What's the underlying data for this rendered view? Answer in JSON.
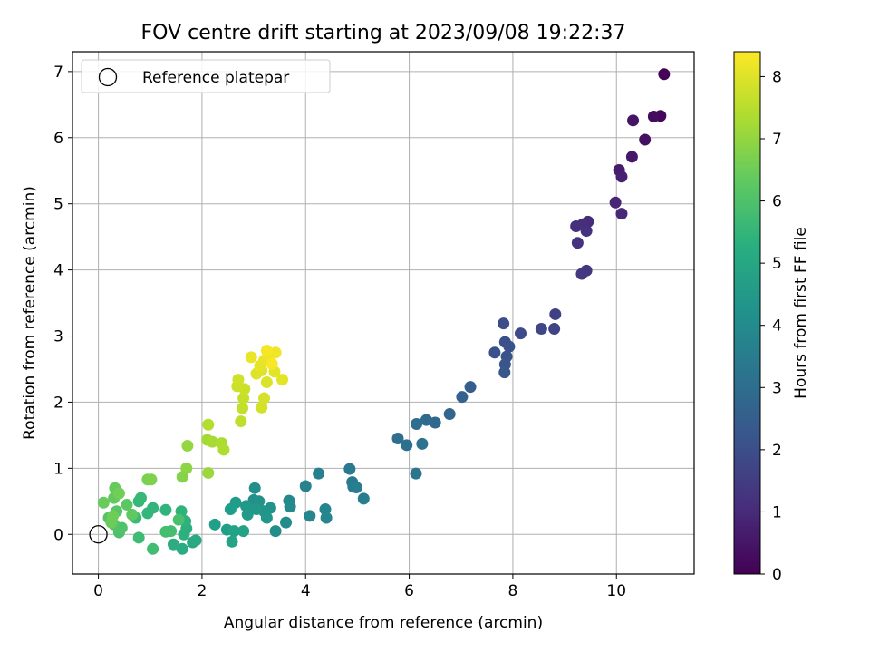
{
  "chart_data": {
    "type": "scatter",
    "title": "FOV centre drift starting at 2023/09/08 19:22:37",
    "xlabel": "Angular distance from reference (arcmin)",
    "ylabel": "Rotation from reference (arcmin)",
    "xlim": [
      -0.5,
      11.5
    ],
    "ylim": [
      -0.6,
      7.3
    ],
    "xticks": [
      "0",
      "2",
      "4",
      "6",
      "8",
      "10"
    ],
    "yticks": [
      "0",
      "1",
      "2",
      "3",
      "4",
      "5",
      "6",
      "7"
    ],
    "grid": true,
    "legend": {
      "position": "top-left",
      "entries": [
        "Reference platepar"
      ]
    },
    "reference_point": {
      "x": 0,
      "y": 0
    },
    "colorbar": {
      "label": "Hours from first FF file",
      "range": [
        0,
        8.4
      ],
      "ticks": [
        "0",
        "1",
        "2",
        "3",
        "4",
        "5",
        "6",
        "7",
        "8"
      ],
      "colormap": "viridis"
    },
    "points": [
      {
        "x": 10.92,
        "y": 6.96,
        "c": 0.05
      },
      {
        "x": 10.85,
        "y": 6.33,
        "c": 0.15
      },
      {
        "x": 10.72,
        "y": 6.32,
        "c": 0.25
      },
      {
        "x": 10.55,
        "y": 5.97,
        "c": 0.35
      },
      {
        "x": 10.32,
        "y": 6.26,
        "c": 0.45
      },
      {
        "x": 10.3,
        "y": 5.71,
        "c": 0.55
      },
      {
        "x": 10.05,
        "y": 5.51,
        "c": 0.65
      },
      {
        "x": 10.1,
        "y": 5.41,
        "c": 0.75
      },
      {
        "x": 9.98,
        "y": 5.02,
        "c": 0.85
      },
      {
        "x": 10.1,
        "y": 4.85,
        "c": 0.95
      },
      {
        "x": 9.45,
        "y": 4.73,
        "c": 1.05
      },
      {
        "x": 9.35,
        "y": 4.69,
        "c": 1.1
      },
      {
        "x": 9.22,
        "y": 4.66,
        "c": 1.15
      },
      {
        "x": 9.42,
        "y": 4.59,
        "c": 1.2
      },
      {
        "x": 9.25,
        "y": 4.41,
        "c": 1.25
      },
      {
        "x": 9.42,
        "y": 3.99,
        "c": 1.35
      },
      {
        "x": 9.33,
        "y": 3.94,
        "c": 1.4
      },
      {
        "x": 8.82,
        "y": 3.33,
        "c": 1.6
      },
      {
        "x": 8.8,
        "y": 3.11,
        "c": 1.7
      },
      {
        "x": 8.55,
        "y": 3.11,
        "c": 1.8
      },
      {
        "x": 8.15,
        "y": 3.04,
        "c": 1.9
      },
      {
        "x": 7.82,
        "y": 3.19,
        "c": 2.0
      },
      {
        "x": 7.85,
        "y": 2.91,
        "c": 2.05
      },
      {
        "x": 7.93,
        "y": 2.84,
        "c": 2.1
      },
      {
        "x": 7.65,
        "y": 2.75,
        "c": 2.15
      },
      {
        "x": 7.88,
        "y": 2.69,
        "c": 2.2
      },
      {
        "x": 7.85,
        "y": 2.57,
        "c": 2.25
      },
      {
        "x": 7.84,
        "y": 2.45,
        "c": 2.3
      },
      {
        "x": 7.18,
        "y": 2.23,
        "c": 2.5
      },
      {
        "x": 7.02,
        "y": 2.08,
        "c": 2.6
      },
      {
        "x": 6.78,
        "y": 1.82,
        "c": 2.75
      },
      {
        "x": 6.5,
        "y": 1.69,
        "c": 2.85
      },
      {
        "x": 6.33,
        "y": 1.73,
        "c": 2.9
      },
      {
        "x": 6.14,
        "y": 1.67,
        "c": 2.95
      },
      {
        "x": 5.78,
        "y": 1.45,
        "c": 3.05
      },
      {
        "x": 5.95,
        "y": 1.35,
        "c": 3.1
      },
      {
        "x": 6.25,
        "y": 1.37,
        "c": 3.15
      },
      {
        "x": 6.13,
        "y": 0.92,
        "c": 3.25
      },
      {
        "x": 4.85,
        "y": 0.99,
        "c": 3.4
      },
      {
        "x": 4.9,
        "y": 0.79,
        "c": 3.45
      },
      {
        "x": 4.92,
        "y": 0.72,
        "c": 3.5
      },
      {
        "x": 4.98,
        "y": 0.71,
        "c": 3.55
      },
      {
        "x": 5.12,
        "y": 0.54,
        "c": 3.6
      },
      {
        "x": 4.25,
        "y": 0.92,
        "c": 3.7
      },
      {
        "x": 4.0,
        "y": 0.73,
        "c": 3.75
      },
      {
        "x": 4.38,
        "y": 0.38,
        "c": 3.8
      },
      {
        "x": 4.4,
        "y": 0.25,
        "c": 3.85
      },
      {
        "x": 4.08,
        "y": 0.28,
        "c": 3.9
      },
      {
        "x": 3.68,
        "y": 0.51,
        "c": 3.95
      },
      {
        "x": 3.7,
        "y": 0.42,
        "c": 4.0
      },
      {
        "x": 3.62,
        "y": 0.18,
        "c": 4.05
      },
      {
        "x": 3.42,
        "y": 0.05,
        "c": 4.1
      },
      {
        "x": 3.02,
        "y": 0.7,
        "c": 4.15
      },
      {
        "x": 3.0,
        "y": 0.52,
        "c": 4.2
      },
      {
        "x": 3.1,
        "y": 0.5,
        "c": 4.25
      },
      {
        "x": 3.32,
        "y": 0.4,
        "c": 4.3
      },
      {
        "x": 3.2,
        "y": 0.35,
        "c": 4.35
      },
      {
        "x": 3.25,
        "y": 0.25,
        "c": 4.4
      },
      {
        "x": 3.05,
        "y": 0.38,
        "c": 4.45
      },
      {
        "x": 2.85,
        "y": 0.43,
        "c": 4.5
      },
      {
        "x": 2.88,
        "y": 0.3,
        "c": 4.55
      },
      {
        "x": 2.65,
        "y": 0.48,
        "c": 4.6
      },
      {
        "x": 2.55,
        "y": 0.38,
        "c": 4.65
      },
      {
        "x": 2.48,
        "y": 0.07,
        "c": 4.7
      },
      {
        "x": 2.25,
        "y": 0.15,
        "c": 4.75
      },
      {
        "x": 2.62,
        "y": 0.05,
        "c": 4.8
      },
      {
        "x": 2.8,
        "y": 0.05,
        "c": 4.85
      },
      {
        "x": 2.58,
        "y": -0.11,
        "c": 4.9
      },
      {
        "x": 1.82,
        "y": -0.12,
        "c": 5.05
      },
      {
        "x": 1.88,
        "y": -0.09,
        "c": 5.1
      },
      {
        "x": 1.62,
        "y": -0.22,
        "c": 5.15
      },
      {
        "x": 1.45,
        "y": -0.15,
        "c": 5.2
      },
      {
        "x": 1.7,
        "y": 0.09,
        "c": 5.25
      },
      {
        "x": 1.65,
        "y": 0.0,
        "c": 5.3
      },
      {
        "x": 1.68,
        "y": 0.2,
        "c": 5.35
      },
      {
        "x": 1.6,
        "y": 0.35,
        "c": 5.4
      },
      {
        "x": 1.3,
        "y": 0.37,
        "c": 5.45
      },
      {
        "x": 1.05,
        "y": 0.4,
        "c": 5.5
      },
      {
        "x": 0.95,
        "y": 0.32,
        "c": 5.55
      },
      {
        "x": 0.78,
        "y": 0.5,
        "c": 5.6
      },
      {
        "x": 0.82,
        "y": 0.55,
        "c": 5.65
      },
      {
        "x": 0.72,
        "y": 0.25,
        "c": 5.7
      },
      {
        "x": 0.78,
        "y": -0.05,
        "c": 5.75
      },
      {
        "x": 1.05,
        "y": -0.22,
        "c": 5.8
      },
      {
        "x": 1.3,
        "y": 0.04,
        "c": 5.85
      },
      {
        "x": 1.4,
        "y": 0.05,
        "c": 5.9
      },
      {
        "x": 1.55,
        "y": 0.22,
        "c": 5.95
      },
      {
        "x": 0.4,
        "y": 0.03,
        "c": 6.0
      },
      {
        "x": 0.45,
        "y": 0.1,
        "c": 6.05
      },
      {
        "x": 0.3,
        "y": 0.15,
        "c": 6.1
      },
      {
        "x": 0.2,
        "y": 0.25,
        "c": 6.15
      },
      {
        "x": 0.35,
        "y": 0.35,
        "c": 6.2
      },
      {
        "x": 0.55,
        "y": 0.45,
        "c": 6.25
      },
      {
        "x": 0.65,
        "y": 0.3,
        "c": 6.3
      },
      {
        "x": 0.3,
        "y": 0.55,
        "c": 6.35
      },
      {
        "x": 0.32,
        "y": 0.7,
        "c": 6.4
      },
      {
        "x": 0.1,
        "y": 0.48,
        "c": 6.45
      },
      {
        "x": 0.25,
        "y": 0.18,
        "c": 6.5
      },
      {
        "x": 0.28,
        "y": 0.28,
        "c": 6.55
      },
      {
        "x": 0.4,
        "y": 0.62,
        "c": 6.6
      },
      {
        "x": 0.95,
        "y": 0.83,
        "c": 6.7
      },
      {
        "x": 1.02,
        "y": 0.83,
        "c": 6.75
      },
      {
        "x": 1.62,
        "y": 0.87,
        "c": 6.85
      },
      {
        "x": 1.7,
        "y": 1.0,
        "c": 6.95
      },
      {
        "x": 1.72,
        "y": 1.34,
        "c": 7.05
      },
      {
        "x": 2.12,
        "y": 0.93,
        "c": 7.15
      },
      {
        "x": 2.1,
        "y": 1.43,
        "c": 7.25
      },
      {
        "x": 2.2,
        "y": 1.4,
        "c": 7.3
      },
      {
        "x": 2.38,
        "y": 1.38,
        "c": 7.35
      },
      {
        "x": 2.42,
        "y": 1.28,
        "c": 7.4
      },
      {
        "x": 2.12,
        "y": 1.66,
        "c": 7.45
      },
      {
        "x": 2.75,
        "y": 1.71,
        "c": 7.6
      },
      {
        "x": 2.78,
        "y": 1.91,
        "c": 7.65
      },
      {
        "x": 2.8,
        "y": 2.06,
        "c": 7.7
      },
      {
        "x": 2.82,
        "y": 2.2,
        "c": 7.75
      },
      {
        "x": 2.68,
        "y": 2.24,
        "c": 7.8
      },
      {
        "x": 2.7,
        "y": 2.34,
        "c": 7.82
      },
      {
        "x": 3.15,
        "y": 1.92,
        "c": 7.85
      },
      {
        "x": 3.2,
        "y": 2.06,
        "c": 7.9
      },
      {
        "x": 3.25,
        "y": 2.3,
        "c": 7.95
      },
      {
        "x": 3.05,
        "y": 2.43,
        "c": 8.0
      },
      {
        "x": 3.15,
        "y": 2.48,
        "c": 8.02
      },
      {
        "x": 3.4,
        "y": 2.46,
        "c": 8.05
      },
      {
        "x": 3.55,
        "y": 2.34,
        "c": 8.08
      },
      {
        "x": 3.12,
        "y": 2.55,
        "c": 8.1
      },
      {
        "x": 3.2,
        "y": 2.63,
        "c": 8.13
      },
      {
        "x": 2.95,
        "y": 2.68,
        "c": 8.15
      },
      {
        "x": 3.28,
        "y": 2.72,
        "c": 8.2
      },
      {
        "x": 3.42,
        "y": 2.75,
        "c": 8.25
      },
      {
        "x": 3.25,
        "y": 2.78,
        "c": 8.3
      },
      {
        "x": 3.35,
        "y": 2.58,
        "c": 8.35
      }
    ]
  }
}
